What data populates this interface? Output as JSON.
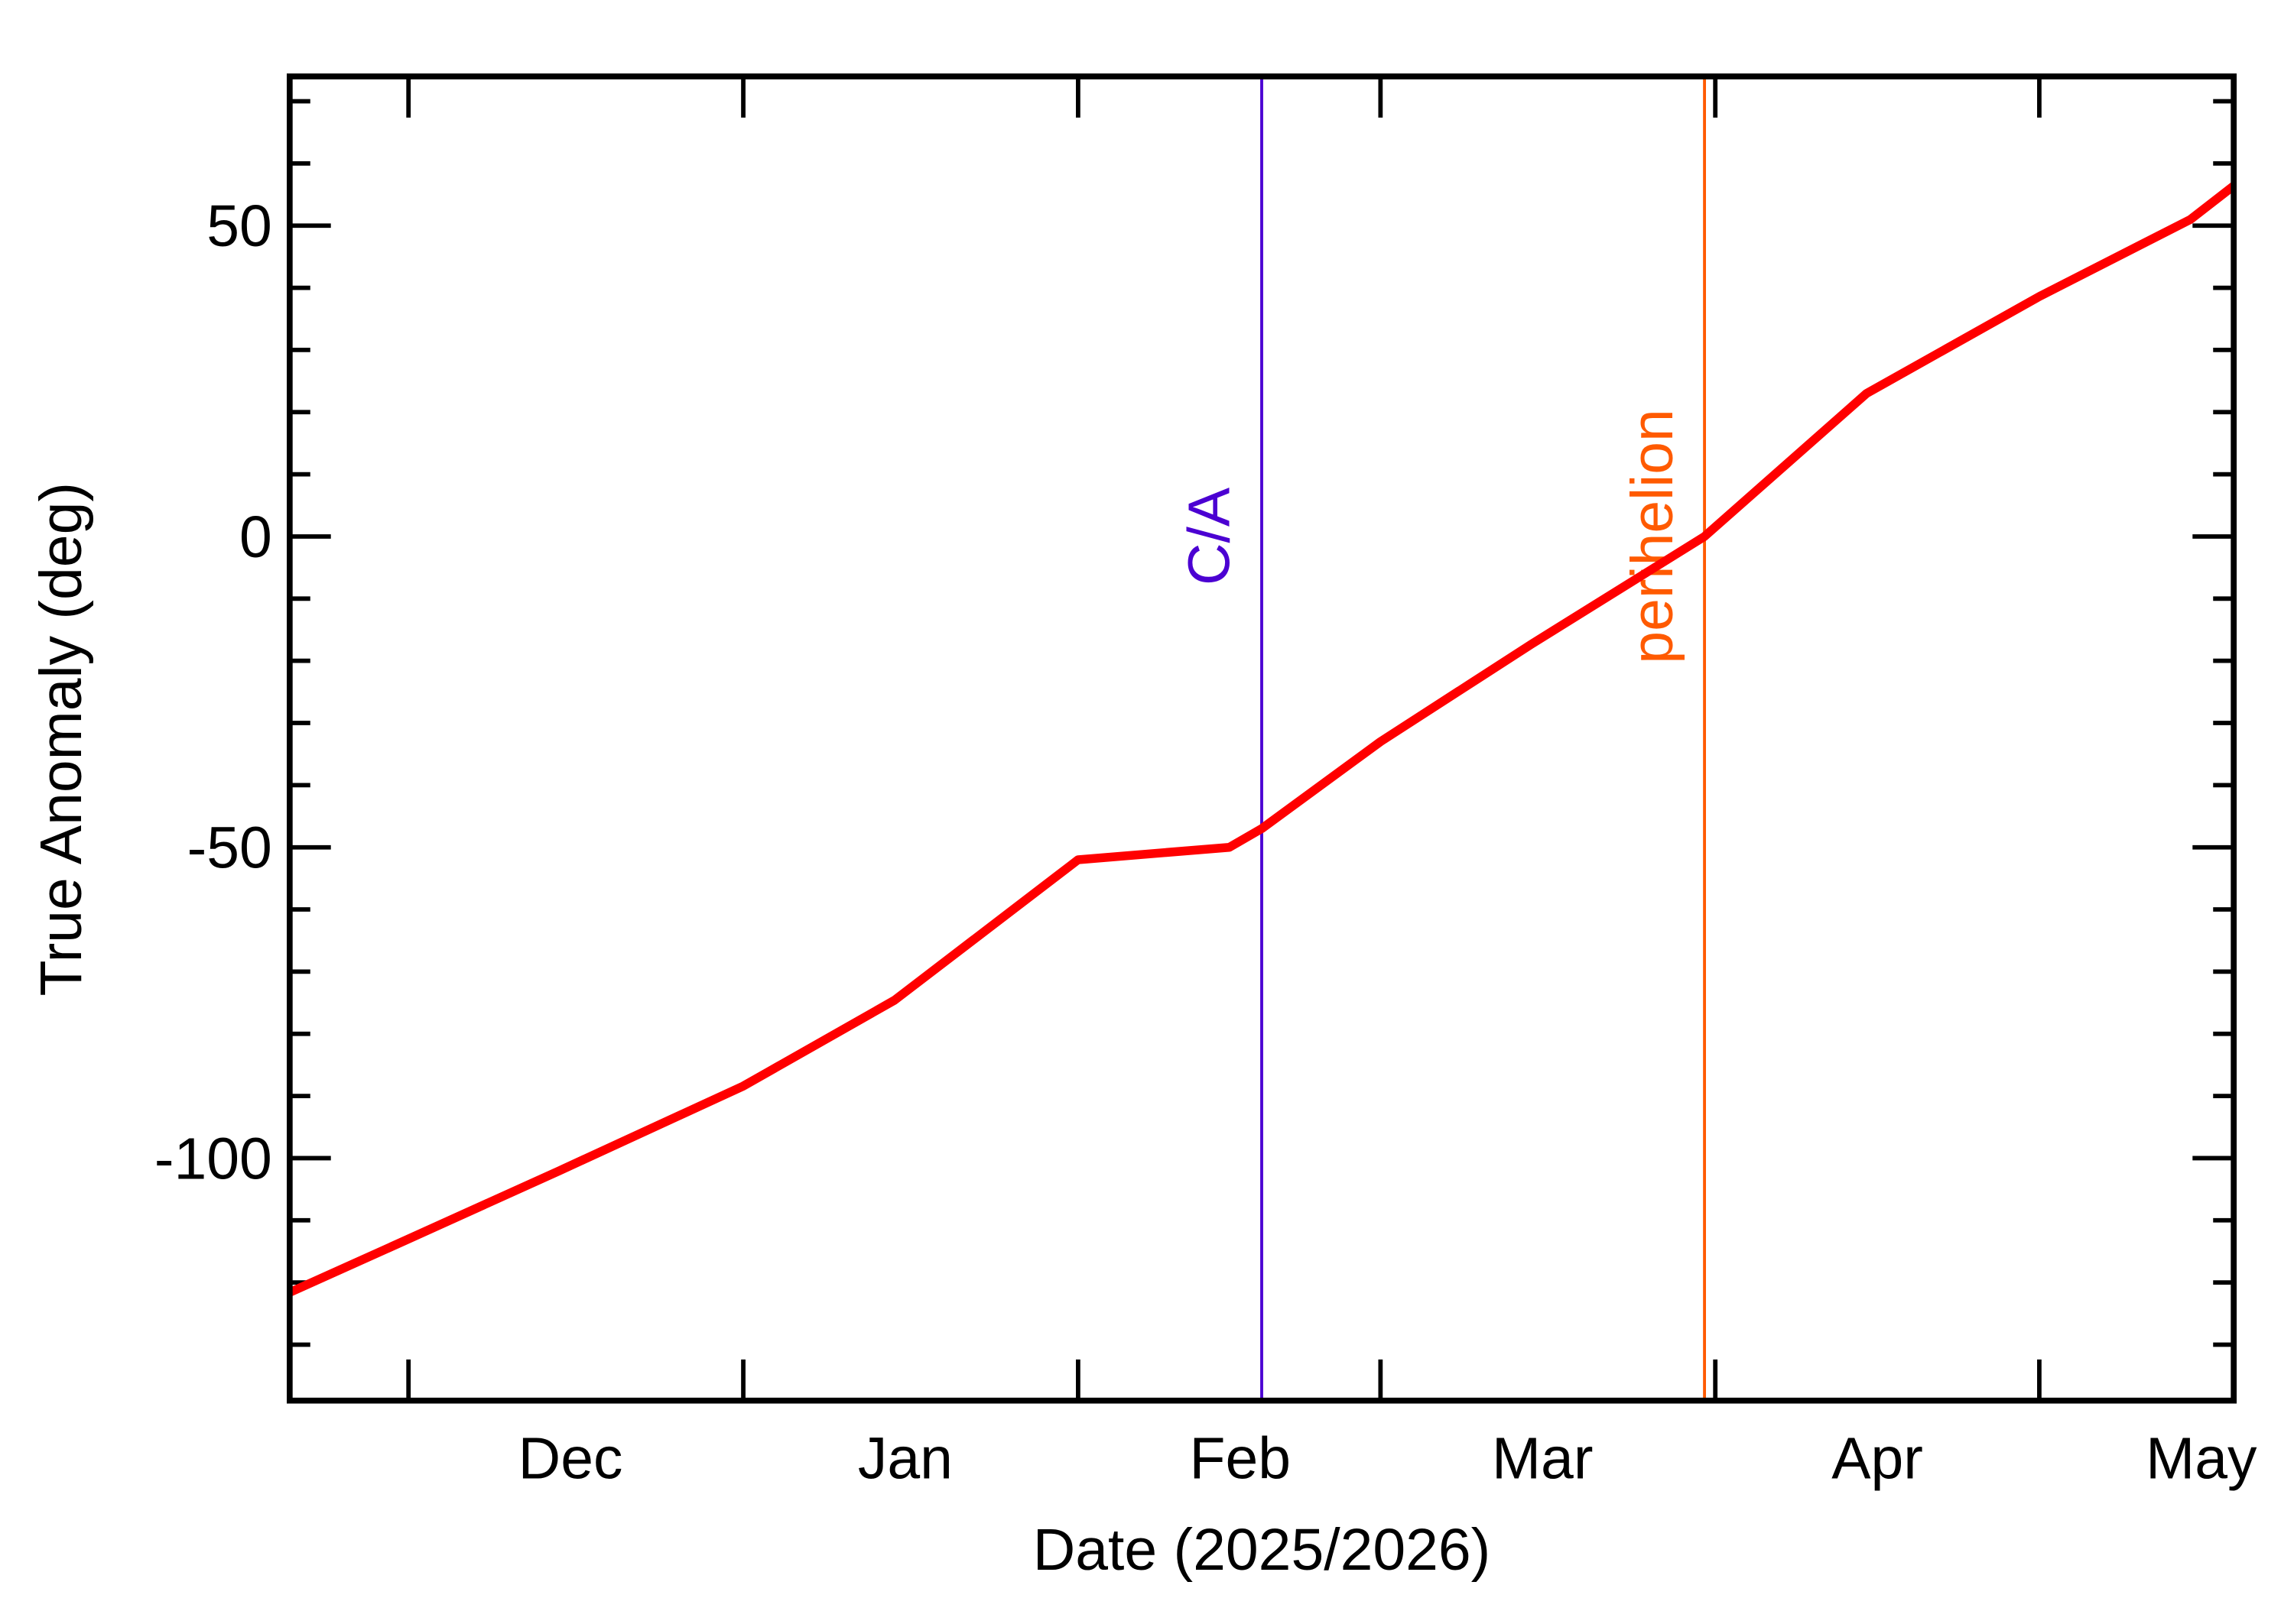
{
  "chart_data": {
    "type": "line",
    "x_label": "Date (2025/2026)",
    "y_label": "True Anomaly (deg)",
    "x": [
      "2025-11-20",
      "2025-12-01",
      "2025-12-15",
      "2026-01-01",
      "2026-01-15",
      "2026-02-01",
      "2026-02-15",
      "2026-02-18",
      "2026-03-01",
      "2026-03-15",
      "2026-03-31",
      "2026-04-15",
      "2026-05-01",
      "2026-05-15",
      "2026-05-19"
    ],
    "series": [
      {
        "color": "#ff0000",
        "values": [
          -121.6,
          -113,
          -102,
          -88.4,
          -74.6,
          -52,
          -50,
          -47,
          -33,
          -17.3,
          0,
          23,
          38.6,
          51,
          56.4
        ]
      }
    ],
    "xlim": [
      "2025-11-20",
      "2026-05-19"
    ],
    "xticks": [
      {
        "value": "2025-12-01",
        "label": "Dec"
      },
      {
        "value": "2026-01-01",
        "label": "Jan"
      },
      {
        "value": "2026-02-01",
        "label": "Feb"
      },
      {
        "value": "2026-03-01",
        "label": "Mar"
      },
      {
        "value": "2026-04-01",
        "label": "Apr"
      },
      {
        "value": "2026-05-01",
        "label": "May"
      }
    ],
    "ylim": [
      -139,
      74
    ],
    "yticks": [
      -100,
      -50,
      0,
      50
    ],
    "yminorticks": [
      -130,
      -120,
      -110,
      -90,
      -80,
      -70,
      -60,
      -40,
      -30,
      -20,
      -10,
      10,
      20,
      30,
      40,
      60,
      70
    ],
    "vlines": [
      {
        "x": "2026-02-18",
        "label": "C/A",
        "color": "#4b00d2"
      },
      {
        "x": "2026-03-31",
        "label": "perihelion",
        "color": "#ff5a00"
      }
    ]
  }
}
